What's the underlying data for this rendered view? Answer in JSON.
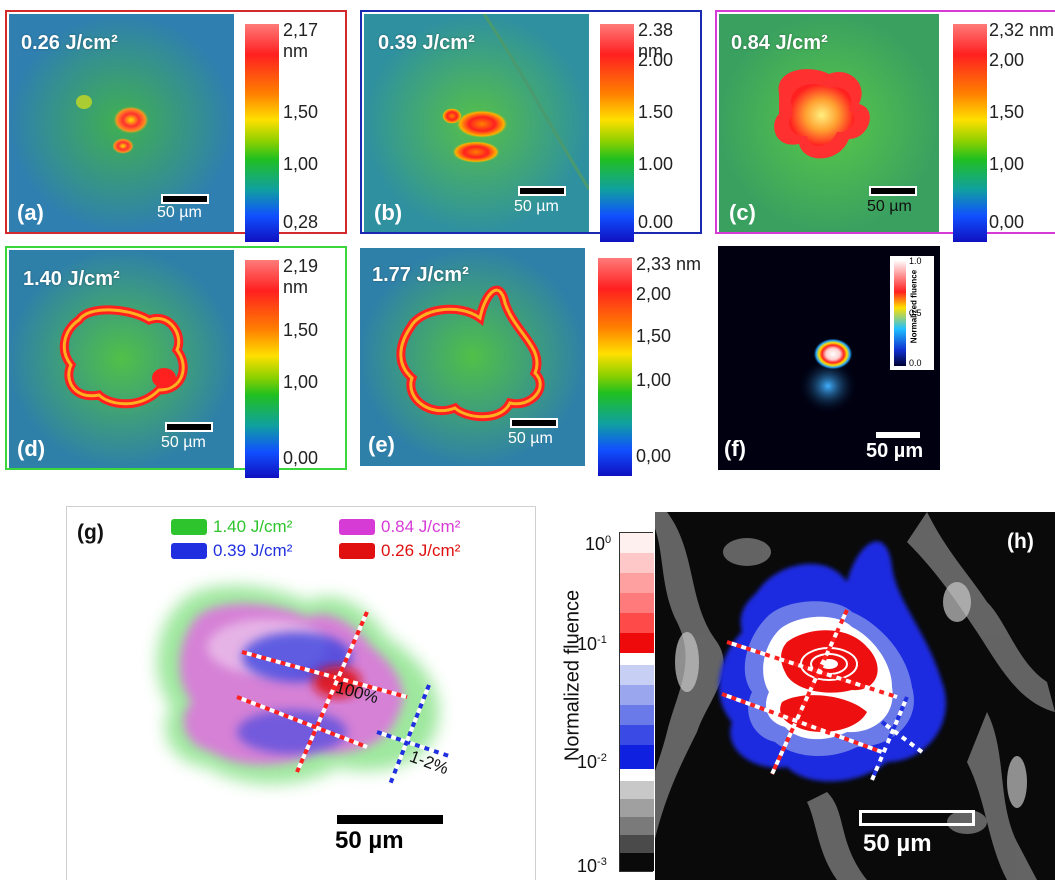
{
  "panels": {
    "a": {
      "label": "(a)",
      "fluence": "0.26 J/cm²",
      "scale": "50 µm",
      "cbar_ticks": [
        "2,17 nm",
        "1,50",
        "1,00",
        "0,28"
      ],
      "border_color": "#d22a2a"
    },
    "b": {
      "label": "(b)",
      "fluence": "0.39 J/cm²",
      "scale": "50 µm",
      "cbar_ticks": [
        "2.38 nm",
        "2.00",
        "1.50",
        "1.00",
        "0.00"
      ],
      "border_color": "#1a2ab0"
    },
    "c": {
      "label": "(c)",
      "fluence": "0.84 J/cm²",
      "scale": "50 µm",
      "cbar_ticks": [
        "2,32 nm",
        "2,00",
        "1,50",
        "1,00",
        "0,00"
      ],
      "border_color": "#d63bd6"
    },
    "d": {
      "label": "(d)",
      "fluence": "1.40 J/cm²",
      "scale": "50 µm",
      "cbar_ticks": [
        "2,19 nm",
        "1,50",
        "1,00",
        "0,00"
      ],
      "border_color": "#3bd63b"
    },
    "e": {
      "label": "(e)",
      "fluence": "1.77 J/cm²",
      "scale": "50 µm",
      "cbar_ticks": [
        "2,33 nm",
        "2,00",
        "1,50",
        "1,00",
        "0,00"
      ],
      "border_color": "#3bd63b"
    },
    "f": {
      "label": "(f)",
      "scale": "50 µm",
      "cbar_title": "Normalized fluence",
      "cbar_ticks": [
        "1.0",
        "0.5",
        "0.0"
      ]
    },
    "g": {
      "label": "(g)",
      "legend": [
        {
          "text": "1.40 J/cm²",
          "color": "#2ec42e"
        },
        {
          "text": "0.84 J/cm²",
          "color": "#d63bd6"
        },
        {
          "text": "0.39 J/cm²",
          "color": "#2030e0"
        },
        {
          "text": "0.26 J/cm²",
          "color": "#e01010"
        }
      ],
      "annotation_center": "100%",
      "annotation_edge": "1-2%",
      "scale": "50 µm"
    },
    "h": {
      "label": "(h)",
      "cbar_title": "Normalized fluence",
      "cbar_ticks": [
        "10",
        "10",
        "10",
        "10"
      ],
      "cbar_exponents": [
        "0",
        "-1",
        "-2",
        "-3"
      ],
      "scale": "50 µm"
    }
  }
}
